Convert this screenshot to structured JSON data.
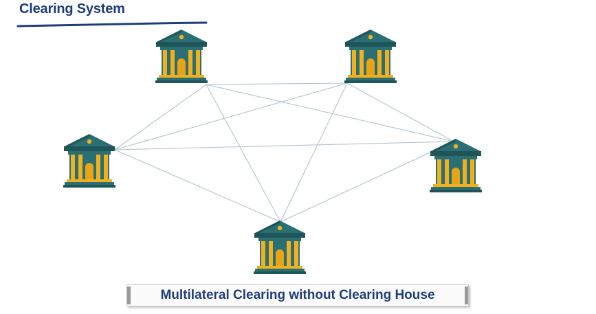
{
  "header": {
    "title": "Clearing System"
  },
  "diagram": {
    "node_icon": "bank-building-icon",
    "nodes": [
      "bank-1",
      "bank-2",
      "bank-3",
      "bank-4",
      "bank-5"
    ],
    "connections": "every bank linked directly to every other bank",
    "colors": {
      "roof": "#2a6f73",
      "roof_dark": "#1f5558",
      "pillar": "#f2b01e",
      "wall": "#e8a317",
      "base": "#2a6f73",
      "door": "#e8a317",
      "link": "#b3c3cf"
    }
  },
  "caption": {
    "text": "Multilateral Clearing without Clearing House"
  }
}
